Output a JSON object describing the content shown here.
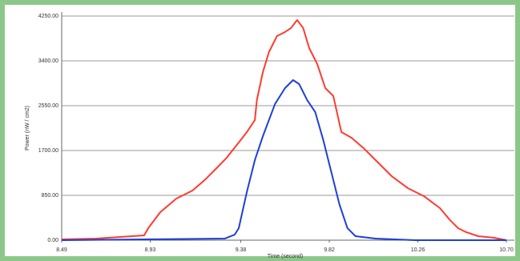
{
  "chart_data": {
    "type": "line",
    "xlabel": "Time (second)",
    "ylabel": "Power (nW / cm2)",
    "xlim": [
      8.49,
      10.7
    ],
    "xticks": [
      8.49,
      8.93,
      9.38,
      9.82,
      10.26,
      {
        "value": 10.7,
        "label": "10.70"
      }
    ],
    "ylim": [
      0,
      4250
    ],
    "yticks": [
      {
        "value": 0,
        "label": "0.00"
      },
      {
        "value": 850,
        "label": "850.00"
      },
      {
        "value": 1700,
        "label": "1700.00"
      },
      {
        "value": 2550,
        "label": "2550.00"
      },
      {
        "value": 3400,
        "label": "3400.00"
      },
      {
        "value": 4250,
        "label": "4250.00"
      }
    ],
    "grid": true,
    "series": [
      {
        "color": "#ff3b2f",
        "x": [
          8.49,
          8.66,
          8.78,
          8.84,
          8.9,
          8.92,
          8.98,
          9.06,
          9.14,
          9.2,
          9.26,
          9.31,
          9.37,
          9.41,
          9.45,
          9.46,
          9.49,
          9.52,
          9.56,
          9.6,
          9.63,
          9.66,
          9.69,
          9.72,
          9.76,
          9.8,
          9.84,
          9.88,
          9.93,
          9.99,
          10.05,
          10.13,
          10.21,
          10.29,
          10.37,
          10.42,
          10.46,
          10.5,
          10.56,
          10.64,
          10.7
        ],
        "values": [
          15,
          30,
          61,
          76,
          91,
          228,
          531,
          789,
          941,
          1138,
          1366,
          1563,
          1852,
          2049,
          2277,
          2656,
          3188,
          3567,
          3871,
          3947,
          4023,
          4174,
          4023,
          3643,
          3340,
          2884,
          2732,
          2049,
          1943,
          1746,
          1518,
          1214,
          987,
          835,
          607,
          380,
          228,
          152,
          76,
          46,
          0
        ]
      },
      {
        "color": "#1f3fd6",
        "x": [
          8.49,
          9.3,
          9.35,
          9.37,
          9.41,
          9.45,
          9.49,
          9.55,
          9.6,
          9.64,
          9.67,
          9.71,
          9.75,
          9.79,
          9.83,
          9.87,
          9.91,
          9.95,
          10.05,
          10.25,
          10.7
        ],
        "values": [
          0,
          30,
          106,
          228,
          911,
          1518,
          1973,
          2581,
          2884,
          3036,
          2960,
          2656,
          2429,
          1898,
          1290,
          683,
          228,
          76,
          30,
          0,
          0
        ]
      }
    ]
  }
}
